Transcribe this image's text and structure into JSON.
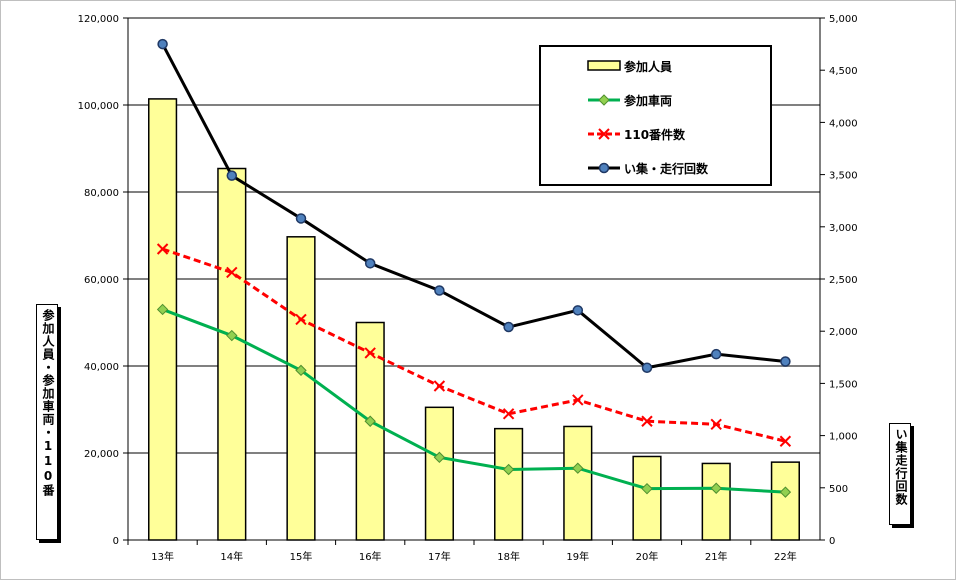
{
  "chart_data": {
    "type": "bar+line",
    "categories": [
      "13年",
      "14年",
      "15年",
      "16年",
      "17年",
      "18年",
      "19年",
      "20年",
      "21年",
      "22年"
    ],
    "left_axis": {
      "title": "参加人員・参加車両・110番",
      "ylim": [
        0,
        120000
      ],
      "ticks": [
        "0",
        "20,000",
        "40,000",
        "60,000",
        "80,000",
        "100,000",
        "120,000"
      ]
    },
    "right_axis": {
      "title": "い集走行回数",
      "ylim": [
        0,
        5000
      ],
      "ticks": [
        "0",
        "500",
        "1,000",
        "1,500",
        "2,000",
        "2,500",
        "3,000",
        "3,500",
        "4,000",
        "4,500",
        "5,000"
      ]
    },
    "series": [
      {
        "name": "参加人員",
        "type": "bar",
        "axis": "left",
        "color": "#ffff99",
        "values": [
          101400,
          85400,
          69700,
          50000,
          30500,
          25600,
          26100,
          19200,
          17600,
          17900
        ]
      },
      {
        "name": "参加車両",
        "type": "line",
        "axis": "left",
        "color": "#00b050",
        "values": [
          53000,
          47000,
          39000,
          27300,
          19000,
          16200,
          16500,
          11800,
          11900,
          11000
        ]
      },
      {
        "name": "110番件数",
        "type": "line",
        "axis": "left",
        "color": "#ff0000",
        "values": [
          66900,
          61500,
          50700,
          43000,
          35400,
          29000,
          32200,
          27300,
          26600,
          22700
        ]
      },
      {
        "name": "い集・走行回数",
        "type": "line",
        "axis": "right",
        "color": "#000000",
        "values": [
          4750,
          3490,
          3080,
          2650,
          2390,
          2040,
          2200,
          1650,
          1780,
          1710
        ]
      }
    ],
    "grid": true,
    "legend": "top-right"
  }
}
